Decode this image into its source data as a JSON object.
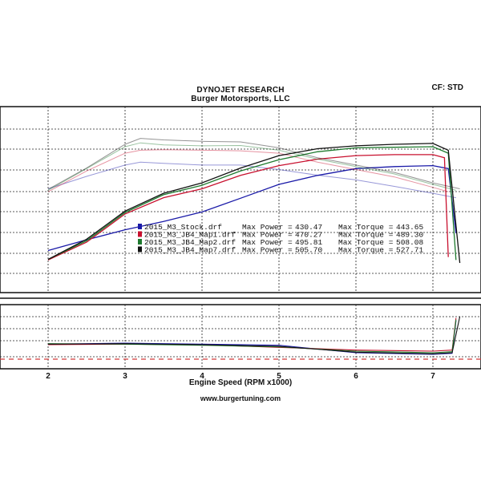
{
  "header": {
    "title": "DYNOJET RESEARCH",
    "subtitle": "Burger Motorsports, LLC",
    "correction": "CF: STD"
  },
  "footer": "www.burgertuning.com",
  "chart_data": {
    "type": "line",
    "xlabel": "Engine Speed (RPM x1000)",
    "x_ticks": [
      "2",
      "3",
      "4",
      "5",
      "6",
      "7"
    ],
    "xlim": [
      1.8,
      7.5
    ],
    "ylim_main": [
      0,
      600
    ],
    "ylim_afr": [
      8,
      20
    ],
    "grid": true,
    "legend": {
      "placement": "center-left",
      "entries": [
        {
          "file": "2015_M3_Stock.drf",
          "max_power_label": "Max Power =",
          "max_power": "430.47",
          "max_torque_label": "Max Torque =",
          "max_torque": "443.65",
          "color": "#1a1aa8"
        },
        {
          "file": "2015_M3_JB4_Map1.drf",
          "max_power_label": "Max Power =",
          "max_power": "470.27",
          "max_torque_label": "Max Torque =",
          "max_torque": "489.30",
          "color": "#c8102e"
        },
        {
          "file": "2015_M3_JB4_Map2.drf",
          "max_power_label": "Max Power =",
          "max_power": "495.81",
          "max_torque_label": "Max Torque =",
          "max_torque": "508.08",
          "color": "#1e7a2e"
        },
        {
          "file": "2015_M3_JB4_Map7.drf",
          "max_power_label": "Max Power =",
          "max_power": "505.70",
          "max_torque_label": "Max Torque =",
          "max_torque": "527.71",
          "color": "#111111"
        }
      ]
    },
    "series": [
      {
        "name": "2015_M3_Stock.drf",
        "color": "#1a1aa8",
        "power": {
          "x": [
            2.0,
            2.5,
            3.0,
            3.5,
            4.0,
            4.5,
            5.0,
            5.5,
            6.0,
            6.5,
            7.0,
            7.2,
            7.3
          ],
          "y": [
            142,
            178,
            212,
            240,
            272,
            318,
            365,
            395,
            418,
            425,
            428,
            418,
            200
          ]
        },
        "torque": {
          "x": [
            2.0,
            2.5,
            3.0,
            3.2,
            3.5,
            4.0,
            4.5,
            5.0,
            5.5,
            6.0,
            6.5,
            7.0,
            7.3
          ],
          "y": [
            350,
            392,
            430,
            440,
            436,
            430,
            430,
            415,
            396,
            380,
            358,
            335,
            320
          ]
        },
        "afr": {
          "x": [
            2.0,
            3.0,
            4.0,
            5.0,
            6.0,
            7.0,
            7.25,
            7.3
          ],
          "y": [
            12.6,
            12.8,
            12.6,
            12.4,
            11.0,
            10.7,
            10.9,
            17.0
          ]
        }
      },
      {
        "name": "2015_M3_JB4_Map1.drf",
        "color": "#c8102e",
        "power": {
          "x": [
            2.0,
            2.5,
            3.0,
            3.5,
            4.0,
            4.5,
            5.0,
            5.5,
            6.0,
            6.5,
            7.0,
            7.15,
            7.2
          ],
          "y": [
            110,
            170,
            265,
            320,
            350,
            395,
            428,
            450,
            462,
            465,
            465,
            455,
            120
          ]
        },
        "torque": {
          "x": [
            2.0,
            2.5,
            3.0,
            3.2,
            3.5,
            4.0,
            4.5,
            5.0,
            5.5,
            6.0,
            6.5,
            7.0,
            7.2
          ],
          "y": [
            340,
            410,
            470,
            480,
            482,
            480,
            478,
            470,
            440,
            415,
            390,
            355,
            340
          ]
        },
        "afr": {
          "x": [
            2.0,
            3.0,
            4.0,
            5.0,
            6.0,
            7.0,
            7.25,
            7.3
          ],
          "y": [
            12.5,
            12.6,
            12.5,
            12.0,
            11.5,
            11.3,
            11.5,
            17.5
          ]
        }
      },
      {
        "name": "2015_M3_JB4_Map2.drf",
        "color": "#1e7a2e",
        "power": {
          "x": [
            2.0,
            2.5,
            3.0,
            3.5,
            4.0,
            4.5,
            5.0,
            5.5,
            6.0,
            6.5,
            7.0,
            7.2,
            7.3
          ],
          "y": [
            112,
            175,
            270,
            330,
            362,
            410,
            448,
            475,
            488,
            490,
            492,
            470,
            110
          ]
        },
        "torque": {
          "x": [
            2.0,
            2.5,
            3.0,
            3.2,
            3.5,
            4.0,
            4.5,
            5.0,
            5.5,
            6.0,
            6.5,
            7.0,
            7.3
          ],
          "y": [
            345,
            418,
            492,
            505,
            498,
            495,
            496,
            480,
            450,
            425,
            400,
            365,
            345
          ]
        },
        "afr": {
          "x": [
            2.0,
            3.0,
            4.0,
            5.0,
            6.0,
            7.0,
            7.25,
            7.3
          ],
          "y": [
            12.7,
            12.6,
            12.4,
            12.1,
            11.3,
            11.0,
            11.2,
            17.2
          ]
        }
      },
      {
        "name": "2015_M3_JB4_Map7.drf",
        "color": "#111111",
        "power": {
          "x": [
            2.0,
            2.5,
            3.0,
            3.5,
            4.0,
            4.5,
            5.0,
            5.5,
            6.0,
            6.5,
            7.0,
            7.2,
            7.35
          ],
          "y": [
            112,
            180,
            275,
            335,
            370,
            420,
            462,
            485,
            495,
            500,
            503,
            480,
            100
          ]
        },
        "torque": {
          "x": [
            2.0,
            2.5,
            3.0,
            3.2,
            3.5,
            4.0,
            4.5,
            5.0,
            5.5,
            6.0,
            6.5,
            7.0,
            7.35
          ],
          "y": [
            348,
            420,
            500,
            520,
            515,
            510,
            508,
            488,
            455,
            430,
            405,
            370,
            350
          ]
        },
        "afr": {
          "x": [
            2.0,
            3.0,
            4.0,
            5.0,
            6.0,
            7.0,
            7.25,
            7.35
          ],
          "y": [
            12.6,
            12.7,
            12.5,
            12.2,
            11.1,
            10.8,
            11.0,
            17.8
          ]
        }
      }
    ],
    "reference_line": {
      "y": 11.0,
      "color": "#d23a3a",
      "style": "dashed"
    }
  }
}
